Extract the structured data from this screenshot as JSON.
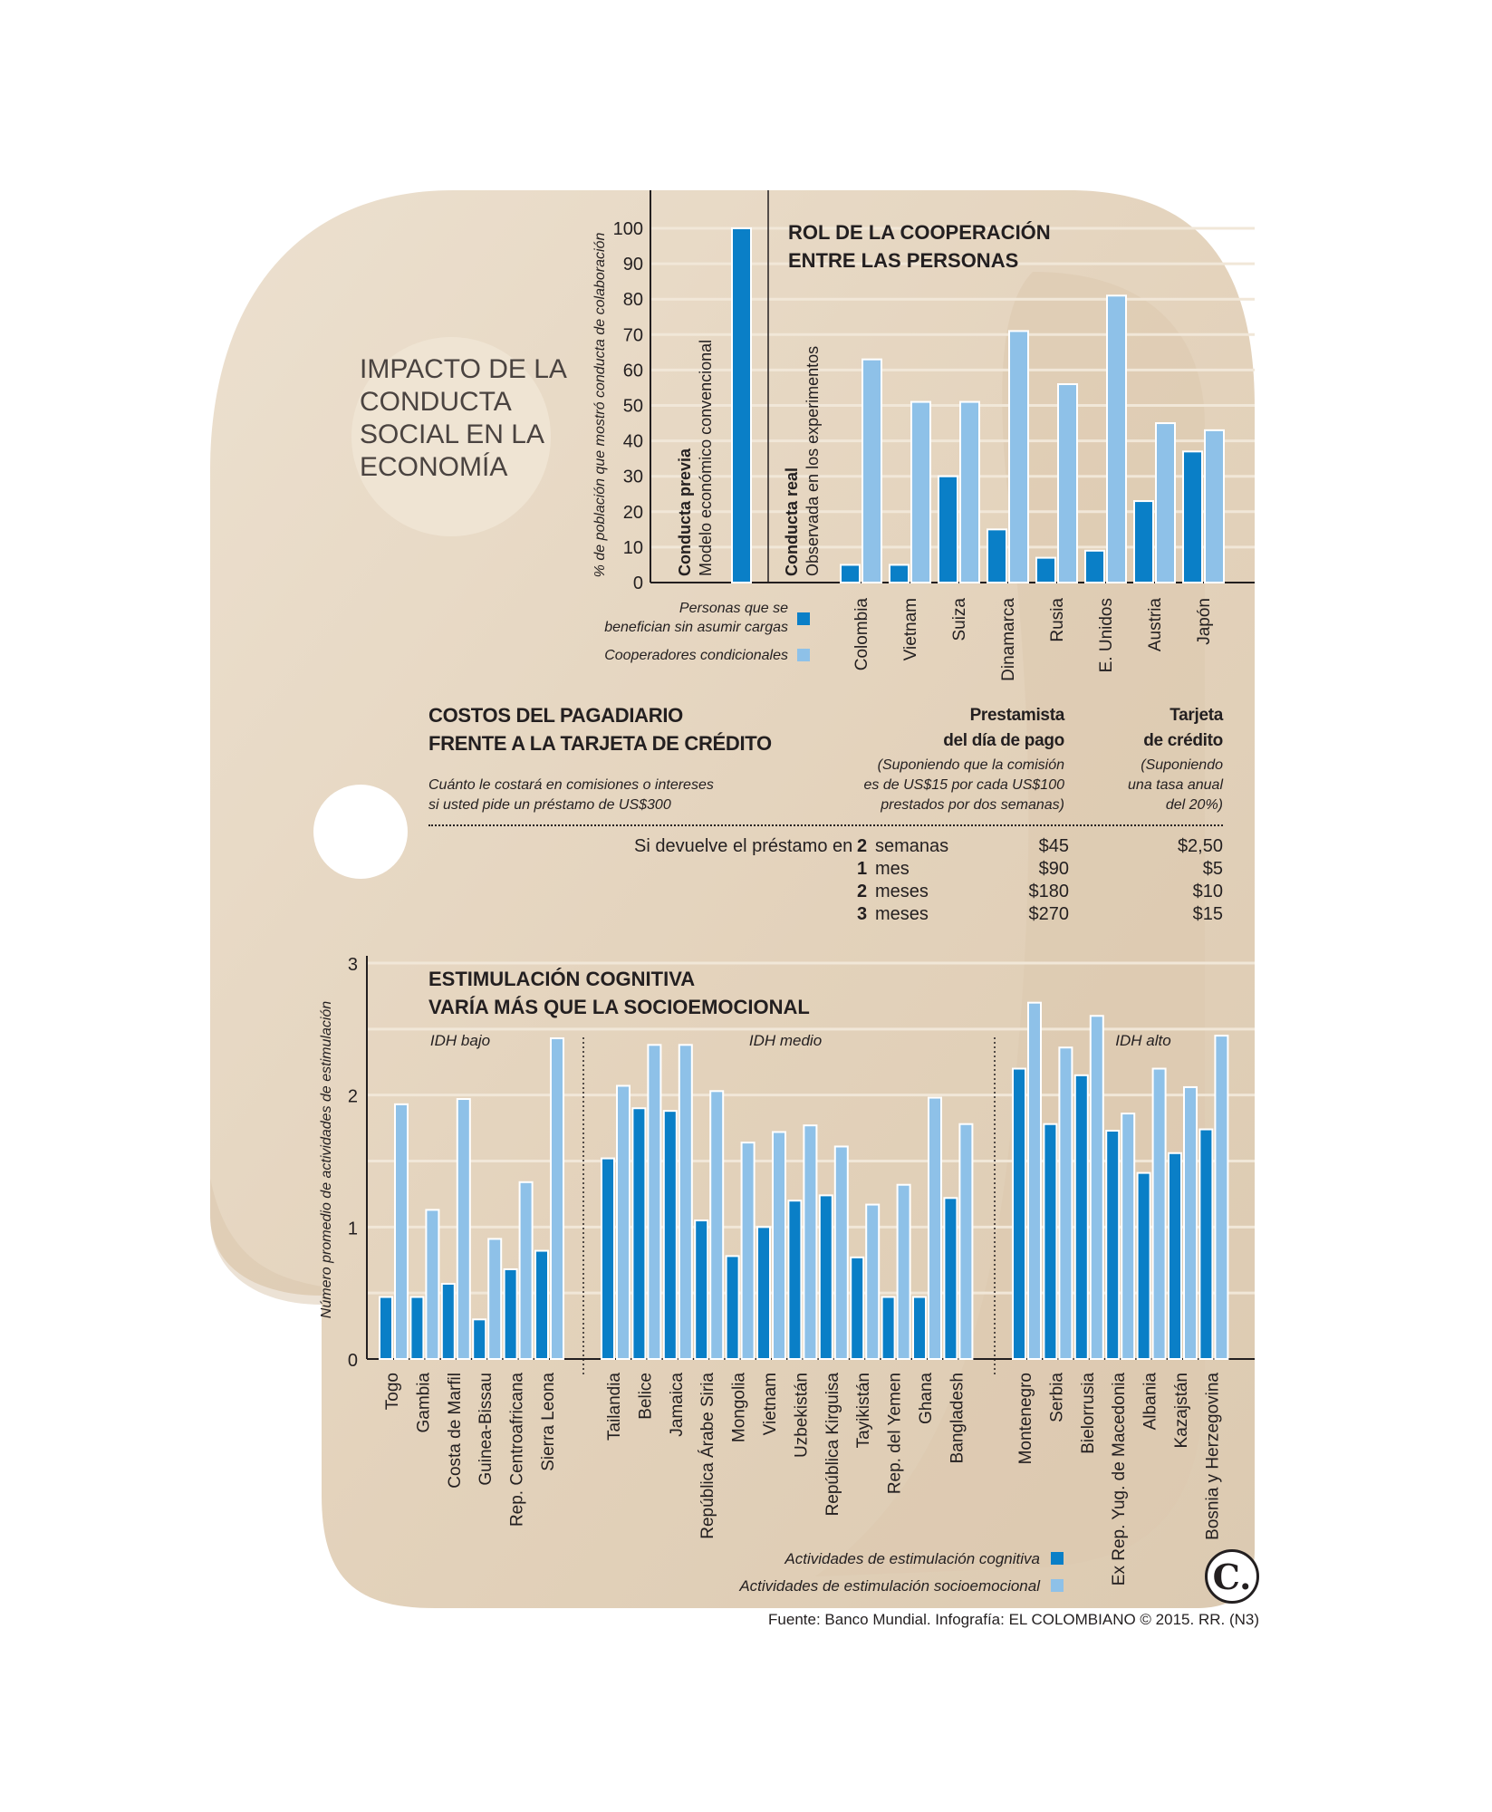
{
  "main_title": "IMPACTO DE LA CONDUCTA SOCIAL EN LA ECONOMÍA",
  "colors": {
    "dark_bar": "#0a7fc7",
    "light_bar": "#8ec1e8",
    "background_shape": "#e6d6c0",
    "circle": "#efe4d3"
  },
  "source": "Fuente: Banco Mundial. Infografía: EL COLOMBIANO © 2015. RR. (N3)",
  "logo": {
    "letter": "C.",
    "icon": "el-colombiano-logo-icon"
  },
  "payday": {
    "title_line1": "COSTOS DEL PAGADIARIO",
    "title_line2": "FRENTE A LA TARJETA DE CRÉDITO",
    "note_line1": "Cuánto le costará en comisiones o intereses",
    "note_line2": "si usted pide un préstamo de US$300",
    "col1_head1": "Prestamista",
    "col1_head2": "del día de pago",
    "col1_note1": "(Suponiendo que la comisión",
    "col1_note2": "es de US$15 por cada US$100",
    "col1_note3": "prestados por dos semanas)",
    "col2_head1": "Tarjeta",
    "col2_head2": "de crédito",
    "col2_note1": "(Suponiendo",
    "col2_note2": "una tasa anual",
    "col2_note3": "del 20%)",
    "row_prefix": "Si devuelve el préstamo en",
    "rows": [
      {
        "num": "2",
        "unit": "semanas",
        "payday": "$45",
        "card": "$2,50"
      },
      {
        "num": "1",
        "unit": "mes",
        "payday": "$90",
        "card": "$5"
      },
      {
        "num": "2",
        "unit": "meses",
        "payday": "$180",
        "card": "$10"
      },
      {
        "num": "3",
        "unit": "meses",
        "payday": "$270",
        "card": "$15"
      }
    ]
  },
  "chart_data": [
    {
      "type": "bar",
      "title": "ROL DE LA COOPERACIÓN ENTRE LAS PERSONAS",
      "ylabel": "% de población que mostró conducta de colaboración",
      "ylim": [
        0,
        100
      ],
      "yticks": [
        0,
        10,
        20,
        30,
        40,
        50,
        60,
        70,
        80,
        90,
        100
      ],
      "group_labels": {
        "previa_bold": "Conducta previa",
        "previa_sub": "Modelo económico convencional",
        "real_bold": "Conducta real",
        "real_sub": "Observada en los experimentos"
      },
      "previa_value": 100,
      "categories": [
        "Colombia",
        "Vietnam",
        "Suiza",
        "Dinamarca",
        "Rusia",
        "E. Unidos",
        "Austria",
        "Japón"
      ],
      "series": [
        {
          "name": "Personas que se benefician sin asumir cargas",
          "values": [
            5,
            5,
            30,
            15,
            7,
            9,
            23,
            37
          ]
        },
        {
          "name": "Cooperadores condicionales",
          "values": [
            63,
            51,
            51,
            71,
            56,
            81,
            45,
            43
          ]
        }
      ],
      "legend": [
        {
          "line1": "Personas que se",
          "line2": "benefician sin asumir cargas",
          "color": "#0a7fc7"
        },
        {
          "line1": "Cooperadores condicionales",
          "line2": "",
          "color": "#8ec1e8"
        }
      ],
      "grid": true
    },
    {
      "type": "bar",
      "title": "ESTIMULACIÓN COGNITIVA VARÍA MÁS QUE LA SOCIOEMOCIONAL",
      "ylabel": "Número promedio de actividades de estimulación",
      "ylim": [
        0,
        3
      ],
      "yticks": [
        0,
        1,
        2,
        3
      ],
      "groups": [
        {
          "label": "IDH bajo",
          "count": 6
        },
        {
          "label": "IDH medio",
          "count": 12
        },
        {
          "label": "IDH alto",
          "count": 7
        }
      ],
      "categories": [
        "Togo",
        "Gambia",
        "Costa de Marfil",
        "Guinea-Bissau",
        "Rep. Centroafricana",
        "Sierra Leona",
        "Tailandia",
        "Belice",
        "Jamaica",
        "República Árabe Siria",
        "Mongolia",
        "Vietnam",
        "Uzbekistán",
        "República Kirguisa",
        "Tayikistán",
        "Rep. del Yemen",
        "Ghana",
        "Bangladesh",
        "Montenegro",
        "Serbia",
        "Bielorrusia",
        "Ex Rep. Yug. de Macedonia",
        "Albania",
        "Kazajstán",
        "Bosnia y Herzegovina"
      ],
      "series": [
        {
          "name": "Actividades de estimulación cognitiva",
          "values": [
            0.47,
            0.47,
            0.57,
            0.3,
            0.68,
            0.82,
            1.52,
            1.9,
            1.88,
            1.05,
            0.78,
            1.0,
            1.2,
            1.24,
            0.77,
            0.47,
            0.47,
            1.22,
            2.2,
            1.78,
            2.15,
            1.73,
            1.41,
            1.56,
            1.74
          ]
        },
        {
          "name": "Actividades de estimulación socioemocional",
          "values": [
            1.93,
            1.13,
            1.97,
            0.91,
            1.34,
            2.43,
            2.07,
            2.38,
            2.38,
            2.03,
            1.64,
            1.72,
            1.77,
            1.61,
            1.17,
            1.32,
            1.98,
            1.78,
            2.7,
            2.36,
            2.6,
            1.86,
            2.2,
            2.06,
            2.45
          ]
        }
      ],
      "legend_placement": "bottom-right",
      "grid": true
    }
  ]
}
